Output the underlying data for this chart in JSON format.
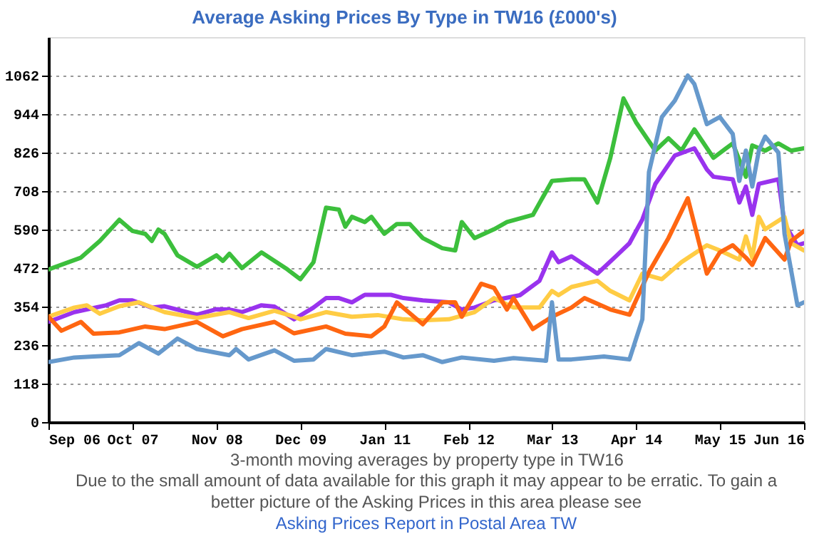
{
  "chart_data": {
    "type": "line",
    "title": "Average Asking Prices By Type in TW16 (£000's)",
    "xlabel": "3-month moving averages by property type in TW16",
    "annotations": [
      "Due to the small amount of data available for this graph it may appear to be erratic. To gain a better picture of the Asking Prices in this area please see",
      "Asking Prices Report in Postal Area TW"
    ],
    "xlim": [
      "2006-09",
      "2016-06"
    ],
    "xticks": [
      {
        "value": "2006-09",
        "label": "Sep 06"
      },
      {
        "value": "2007-10",
        "label": "Oct 07"
      },
      {
        "value": "2008-11",
        "label": "Nov 08"
      },
      {
        "value": "2009-12",
        "label": "Dec 09"
      },
      {
        "value": "2011-01",
        "label": "Jan 11"
      },
      {
        "value": "2012-02",
        "label": "Feb 12"
      },
      {
        "value": "2013-03",
        "label": "Mar 13"
      },
      {
        "value": "2014-04",
        "label": "Apr 14"
      },
      {
        "value": "2015-05",
        "label": "May 15"
      },
      {
        "value": "2016-06",
        "label": "Jun 16"
      }
    ],
    "ylim": [
      0,
      1180
    ],
    "yticks": [
      0,
      118,
      236,
      354,
      472,
      590,
      708,
      826,
      944,
      1062
    ],
    "grid": "y",
    "legend": false,
    "line_style": "solid",
    "marker": "none",
    "series": [
      {
        "color": "#3cbf3c",
        "x": [
          "2006-09",
          "2007-02",
          "2007-05",
          "2007-08",
          "2007-10",
          "2007-12",
          "2008-01",
          "2008-02",
          "2008-03",
          "2008-05",
          "2008-08",
          "2008-11",
          "2008-12",
          "2009-01",
          "2009-03",
          "2009-06",
          "2009-10",
          "2009-12",
          "2010-02",
          "2010-04",
          "2010-06",
          "2010-07",
          "2010-08",
          "2010-10",
          "2010-11",
          "2011-01",
          "2011-03",
          "2011-05",
          "2011-07",
          "2011-10",
          "2011-12",
          "2012-01",
          "2012-03",
          "2012-06",
          "2012-08",
          "2012-12",
          "2013-03",
          "2013-06",
          "2013-08",
          "2013-10",
          "2013-12",
          "2014-02",
          "2014-04",
          "2014-07",
          "2014-09",
          "2014-11",
          "2015-01",
          "2015-04",
          "2015-07",
          "2015-09",
          "2015-10",
          "2015-12",
          "2016-02",
          "2016-04",
          "2016-06"
        ],
        "values": [
          468,
          504,
          555,
          620,
          586,
          577,
          555,
          590,
          577,
          511,
          476,
          511,
          494,
          516,
          472,
          520,
          468,
          438,
          490,
          657,
          651,
          599,
          629,
          613,
          629,
          577,
          607,
          607,
          564,
          533,
          526,
          613,
          564,
          591,
          613,
          635,
          739,
          744,
          744,
          673,
          810,
          992,
          919,
          832,
          870,
          832,
          897,
          810,
          854,
          752,
          848,
          832,
          854,
          832,
          839
        ]
      },
      {
        "color": "#9933ee",
        "x": [
          "2006-09",
          "2007-01",
          "2007-06",
          "2007-08",
          "2007-10",
          "2008-01",
          "2008-03",
          "2008-08",
          "2008-11",
          "2009-01",
          "2009-03",
          "2009-06",
          "2009-08",
          "2009-11",
          "2010-02",
          "2010-04",
          "2010-06",
          "2010-08",
          "2010-10",
          "2011-02",
          "2011-04",
          "2011-07",
          "2011-11",
          "2012-01",
          "2012-03",
          "2012-06",
          "2012-10",
          "2013-01",
          "2013-03",
          "2013-04",
          "2013-06",
          "2013-08",
          "2013-10",
          "2014-01",
          "2014-03",
          "2014-05",
          "2014-07",
          "2014-10",
          "2015-01",
          "2015-03",
          "2015-04",
          "2015-07",
          "2015-08",
          "2015-09",
          "2015-10",
          "2015-11",
          "2016-02",
          "2016-03",
          "2016-05",
          "2016-06"
        ],
        "values": [
          307,
          337,
          358,
          373,
          373,
          351,
          355,
          329,
          346,
          345,
          337,
          358,
          354,
          315,
          351,
          380,
          380,
          367,
          390,
          390,
          380,
          373,
          367,
          345,
          351,
          373,
          389,
          433,
          520,
          490,
          508,
          482,
          455,
          511,
          548,
          621,
          730,
          817,
          839,
          774,
          752,
          744,
          673,
          722,
          635,
          730,
          744,
          607,
          542,
          548
        ]
      },
      {
        "color": "#ffcc44",
        "x": [
          "2006-09",
          "2007-01",
          "2007-03",
          "2007-05",
          "2007-08",
          "2007-11",
          "2008-03",
          "2008-08",
          "2009-01",
          "2009-04",
          "2009-08",
          "2009-11",
          "2009-12",
          "2010-04",
          "2010-08",
          "2010-12",
          "2011-04",
          "2011-07",
          "2011-11",
          "2012-03",
          "2012-06",
          "2012-09",
          "2013-01",
          "2013-03",
          "2013-04",
          "2013-06",
          "2013-10",
          "2013-12",
          "2014-03",
          "2014-05",
          "2014-08",
          "2014-11",
          "2015-03",
          "2015-05",
          "2015-08",
          "2015-09",
          "2015-10",
          "2015-11",
          "2015-12",
          "2016-03",
          "2016-04",
          "2016-06"
        ],
        "values": [
          323,
          351,
          358,
          332,
          355,
          367,
          337,
          319,
          337,
          319,
          341,
          323,
          315,
          337,
          323,
          328,
          315,
          312,
          315,
          337,
          380,
          351,
          351,
          402,
          389,
          414,
          433,
          402,
          373,
          455,
          438,
          490,
          542,
          526,
          498,
          569,
          504,
          629,
          591,
          629,
          548,
          526
        ]
      },
      {
        "color": "#ff6611",
        "x": [
          "2006-09",
          "2006-11",
          "2007-02",
          "2007-04",
          "2007-08",
          "2007-12",
          "2008-03",
          "2008-08",
          "2008-12",
          "2009-03",
          "2009-08",
          "2009-11",
          "2010-04",
          "2010-07",
          "2010-11",
          "2011-01",
          "2011-03",
          "2011-07",
          "2011-10",
          "2011-12",
          "2012-01",
          "2012-04",
          "2012-06",
          "2012-08",
          "2012-09",
          "2012-12",
          "2013-03",
          "2013-06",
          "2013-08",
          "2013-12",
          "2014-03",
          "2014-06",
          "2014-09",
          "2014-12",
          "2015-01",
          "2015-03",
          "2015-05",
          "2015-07",
          "2015-09",
          "2015-10",
          "2015-12",
          "2016-03",
          "2016-04",
          "2016-06"
        ],
        "values": [
          323,
          280,
          307,
          271,
          275,
          293,
          285,
          307,
          263,
          285,
          307,
          272,
          293,
          271,
          263,
          293,
          367,
          300,
          367,
          367,
          323,
          424,
          411,
          345,
          380,
          285,
          323,
          351,
          380,
          345,
          329,
          460,
          564,
          686,
          607,
          455,
          520,
          542,
          504,
          482,
          564,
          498,
          555,
          586
        ]
      },
      {
        "color": "#6699cc",
        "x": [
          "2006-09",
          "2007-01",
          "2007-04",
          "2007-08",
          "2007-11",
          "2008-02",
          "2008-05",
          "2008-08",
          "2009-01",
          "2009-02",
          "2009-04",
          "2009-08",
          "2009-11",
          "2010-02",
          "2010-04",
          "2010-08",
          "2011-01",
          "2011-04",
          "2011-07",
          "2011-10",
          "2012-01",
          "2012-06",
          "2012-09",
          "2013-02",
          "2013-03",
          "2013-04",
          "2013-06",
          "2013-11",
          "2014-03",
          "2014-05",
          "2014-06",
          "2014-08",
          "2014-10",
          "2014-12",
          "2015-01",
          "2015-03",
          "2015-05",
          "2015-07",
          "2015-08",
          "2015-09",
          "2015-10",
          "2015-11",
          "2015-12",
          "2016-02",
          "2016-03",
          "2016-05",
          "2016-06"
        ],
        "values": [
          184,
          198,
          201,
          205,
          242,
          210,
          256,
          224,
          205,
          224,
          192,
          220,
          188,
          192,
          224,
          205,
          216,
          198,
          205,
          184,
          198,
          188,
          196,
          188,
          367,
          192,
          192,
          201,
          192,
          315,
          766,
          935,
          985,
          1062,
          1036,
          913,
          935,
          883,
          739,
          832,
          722,
          832,
          875,
          826,
          577,
          358,
          367
        ]
      }
    ]
  }
}
